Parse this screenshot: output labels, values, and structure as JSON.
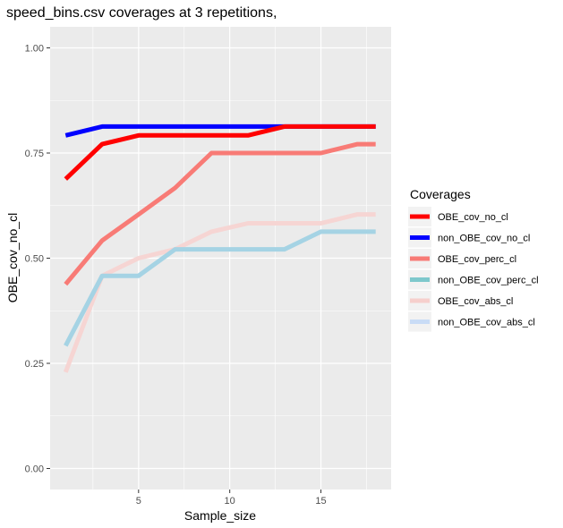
{
  "chart_data": {
    "type": "line",
    "title": "speed_bins.csv coverages at 3 repetitions,",
    "xlabel": "Sample_size",
    "ylabel": "OBE_cov_no_cl",
    "xlim": [
      0.15,
      18.85
    ],
    "ylim": [
      -0.05,
      1.05
    ],
    "x_ticks": [
      5,
      10,
      15
    ],
    "x_tick_labels": [
      "5",
      "10",
      "15"
    ],
    "y_ticks": [
      0.0,
      0.25,
      0.5,
      0.75,
      1.0
    ],
    "y_tick_labels": [
      "0.00",
      "0.25",
      "0.50",
      "0.75",
      "1.00"
    ],
    "grid": true,
    "legend": {
      "title": "Coverages",
      "position": "right"
    },
    "series": [
      {
        "name": "OBE_cov_no_cl",
        "color": "#ff0000",
        "x": [
          1,
          3,
          5,
          7,
          9,
          11,
          13,
          15,
          17,
          18
        ],
        "y": [
          0.688,
          0.771,
          0.792,
          0.792,
          0.792,
          0.792,
          0.813,
          0.813,
          0.813,
          0.813
        ]
      },
      {
        "name": "non_OBE_cov_no_cl",
        "color": "#0000ff",
        "x": [
          1,
          3,
          5,
          7,
          9,
          11,
          13,
          15,
          17,
          18
        ],
        "y": [
          0.792,
          0.813,
          0.813,
          0.813,
          0.813,
          0.813,
          0.813,
          0.813,
          0.813,
          0.813
        ]
      },
      {
        "name": "OBE_cov_perc_cl",
        "color": "#f87b76",
        "x": [
          1,
          3,
          5,
          7,
          9,
          11,
          13,
          15,
          17,
          18
        ],
        "y": [
          0.438,
          0.542,
          0.604,
          0.667,
          0.75,
          0.75,
          0.75,
          0.75,
          0.771,
          0.771
        ]
      },
      {
        "name": "non_OBE_cov_perc_cl",
        "color": "#a5d3e4",
        "x": [
          1,
          3,
          5,
          7,
          9,
          11,
          13,
          15,
          17,
          18
        ],
        "y": [
          0.292,
          0.458,
          0.458,
          0.521,
          0.521,
          0.521,
          0.521,
          0.563,
          0.563,
          0.563
        ]
      },
      {
        "name": "OBE_cov_abs_cl",
        "color": "#f6d5d3",
        "x": [
          1,
          3,
          5,
          7,
          9,
          11,
          13,
          15,
          17,
          18
        ],
        "y": [
          0.229,
          0.458,
          0.5,
          0.521,
          0.563,
          0.583,
          0.583,
          0.583,
          0.604,
          0.604
        ]
      },
      {
        "name": "non_OBE_cov_abs_cl",
        "color": "#c9dcf6",
        "x": [],
        "y": []
      }
    ]
  },
  "legend_key_colors": [
    "#ff0000",
    "#0000ff",
    "#f87b76",
    "#7ec8cc",
    "#f6cfcc",
    "#c9dcf6"
  ]
}
